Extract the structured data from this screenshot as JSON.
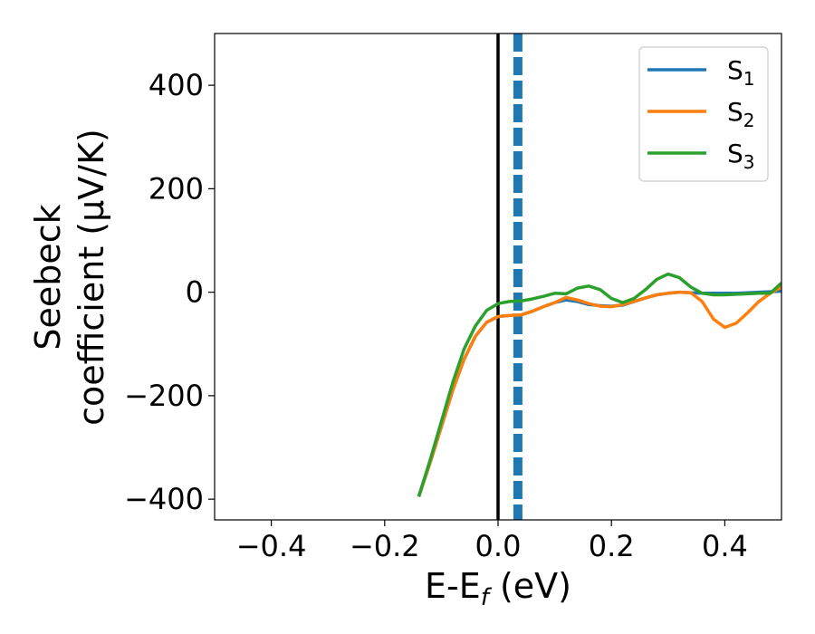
{
  "chart_data": {
    "type": "line",
    "title": "",
    "xlabel": "E-E",
    "xlabel_sub": "f",
    "xlabel_unit": " (eV)",
    "ylabel_lines": [
      "Seebeck",
      "coefficient  (μV/K)"
    ],
    "xlim": [
      -0.5,
      0.5
    ],
    "ylim": [
      -440,
      500
    ],
    "xticks": [
      -0.4,
      -0.2,
      0.0,
      0.2,
      0.4
    ],
    "xtick_labels": [
      "−0.4",
      "−0.2",
      "0.0",
      "0.2",
      "0.4"
    ],
    "yticks": [
      -400,
      -200,
      0,
      200,
      400
    ],
    "ytick_labels": [
      "−400",
      "−200",
      "0",
      "200",
      "400"
    ],
    "grid": false,
    "legend_position": "top-right",
    "reference_lines": [
      {
        "x": 0.0,
        "style": "solid",
        "color": "#000000"
      },
      {
        "x": 0.035,
        "style": "dashed",
        "color": "#1f77b4"
      }
    ],
    "series": [
      {
        "name": "S",
        "sub": "1",
        "color": "#1f77b4",
        "x": [
          -0.14,
          -0.12,
          -0.1,
          -0.08,
          -0.06,
          -0.04,
          -0.02,
          0.0,
          0.02,
          0.04,
          0.06,
          0.08,
          0.1,
          0.12,
          0.14,
          0.16,
          0.18,
          0.2,
          0.22,
          0.24,
          0.26,
          0.28,
          0.3,
          0.32,
          0.34,
          0.36,
          0.38,
          0.4,
          0.42,
          0.44,
          0.46,
          0.48,
          0.5
        ],
        "y": [
          -395,
          -330,
          -260,
          -190,
          -130,
          -85,
          -58,
          -47,
          -45,
          -44,
          -37,
          -28,
          -20,
          -15,
          -18,
          -24,
          -26,
          -27,
          -25,
          -18,
          -11,
          -5,
          -2,
          0,
          -1,
          -2,
          -2,
          -2,
          -2,
          -1,
          0,
          1,
          2
        ]
      },
      {
        "name": "S",
        "sub": "2",
        "color": "#ff7f0e",
        "x": [
          -0.14,
          -0.12,
          -0.1,
          -0.08,
          -0.06,
          -0.04,
          -0.02,
          0.0,
          0.02,
          0.04,
          0.06,
          0.08,
          0.1,
          0.12,
          0.14,
          0.16,
          0.18,
          0.2,
          0.22,
          0.24,
          0.26,
          0.28,
          0.3,
          0.32,
          0.34,
          0.36,
          0.38,
          0.4,
          0.42,
          0.44,
          0.46,
          0.48,
          0.5
        ],
        "y": [
          -395,
          -330,
          -260,
          -190,
          -130,
          -85,
          -58,
          -47,
          -45,
          -44,
          -37,
          -28,
          -20,
          -10,
          -15,
          -22,
          -27,
          -28,
          -24,
          -18,
          -11,
          -5,
          -2,
          0,
          -1,
          -18,
          -52,
          -68,
          -60,
          -40,
          -18,
          -2,
          10
        ]
      },
      {
        "name": "S",
        "sub": "3",
        "color": "#2ca02c",
        "x": [
          -0.14,
          -0.12,
          -0.1,
          -0.08,
          -0.06,
          -0.04,
          -0.02,
          0.0,
          0.02,
          0.04,
          0.06,
          0.08,
          0.1,
          0.12,
          0.14,
          0.16,
          0.18,
          0.2,
          0.22,
          0.24,
          0.26,
          0.28,
          0.3,
          0.32,
          0.34,
          0.36,
          0.38,
          0.4,
          0.42,
          0.44,
          0.46,
          0.48,
          0.5
        ],
        "y": [
          -395,
          -325,
          -250,
          -175,
          -110,
          -65,
          -35,
          -22,
          -18,
          -17,
          -13,
          -8,
          -2,
          -3,
          8,
          12,
          5,
          -12,
          -20,
          -12,
          5,
          25,
          35,
          28,
          10,
          -2,
          -5,
          -5,
          -4,
          -3,
          -2,
          -2,
          18
        ]
      }
    ]
  }
}
